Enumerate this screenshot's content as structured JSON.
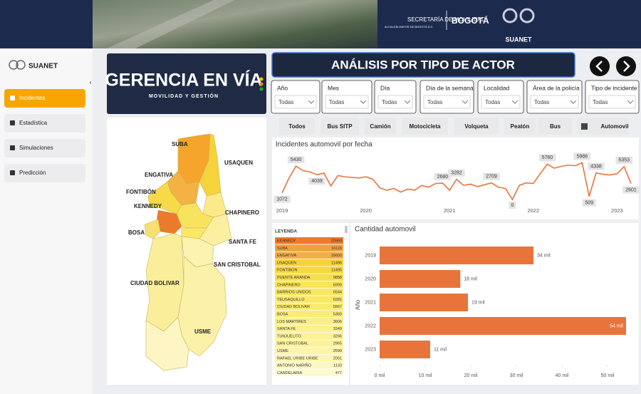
{
  "header": {
    "mayor": "ALCALDÍA MAYOR DE BOGOTÁ D.C.",
    "agency": "SECRETARÍA DE MOVILIDAD",
    "city": "BOGOTÁ",
    "brand": "SUANET"
  },
  "sidebar": {
    "brand": "SUANET",
    "items": [
      {
        "label": "Incidentes",
        "active": true
      },
      {
        "label": "Estadística",
        "active": false
      },
      {
        "label": "Simulaciones",
        "active": false
      },
      {
        "label": "Predicción",
        "active": false
      }
    ]
  },
  "logo": {
    "title": "GERENCIA EN VÍA",
    "subtitle": "MOVILIDAD Y GESTIÓN"
  },
  "page_title": "ANÁLISIS POR TIPO DE ACTOR",
  "filters": [
    {
      "label": "Año",
      "value": "Todas"
    },
    {
      "label": "Mes",
      "value": "Todas"
    },
    {
      "label": "Día",
      "value": "Todas"
    },
    {
      "label": "Día de la semana",
      "value": "Todas"
    },
    {
      "label": "Localidad",
      "value": "Todas"
    },
    {
      "label": "Área de la policía",
      "value": "Todas"
    },
    {
      "label": "Tipo de incidente",
      "value": "Todas"
    }
  ],
  "actors": [
    {
      "label": "Todos",
      "selected": false
    },
    {
      "label": "Bus SITP",
      "selected": false
    },
    {
      "label": "Camión",
      "selected": false
    },
    {
      "label": "Motocicleta",
      "selected": false
    },
    {
      "label": "Volqueta",
      "selected": false
    },
    {
      "label": "Peatón",
      "selected": false
    },
    {
      "label": "Bus",
      "selected": false
    },
    {
      "label": "Automovil",
      "selected": true
    }
  ],
  "map_labels": [
    "SUBA",
    "USAQUEN",
    "ENGATIVA",
    "FONTIBÓN",
    "KENNEDY",
    "CHAPINERO",
    "BOSA",
    "SANTA FE",
    "SAN CRISTOBAL",
    "CIUDAD BOLIVAR",
    "USME"
  ],
  "legend": {
    "title": "LEYENDA",
    "rows": [
      {
        "name": "KENNEDY",
        "value": "20999",
        "color": "#ec7a30"
      },
      {
        "name": "SUBA",
        "value": "16116",
        "color": "#f2a03c"
      },
      {
        "name": "ENGATIVA",
        "value": "15600",
        "color": "#f4ad45"
      },
      {
        "name": "USAQUEN",
        "value": "11496",
        "color": "#f7d23a"
      },
      {
        "name": "FONTIBON",
        "value": "11495",
        "color": "#f7d83e"
      },
      {
        "name": "PUENTE ARANDA",
        "value": "9858",
        "color": "#f8de4a"
      },
      {
        "name": "CHAPINERO",
        "value": "6999",
        "color": "#f9e45a"
      },
      {
        "name": "BARRIOS UNIDOS",
        "value": "6544",
        "color": "#f9e660"
      },
      {
        "name": "TEUSAQUILLO",
        "value": "6281",
        "color": "#fae866"
      },
      {
        "name": "CIUDAD BOLIVAR",
        "value": "5667",
        "color": "#faea70"
      },
      {
        "name": "BOSA",
        "value": "5360",
        "color": "#fbec78"
      },
      {
        "name": "LOS MARTIRES",
        "value": "3606",
        "color": "#fbee88"
      },
      {
        "name": "SANTA FE",
        "value": "3349",
        "color": "#fcf090"
      },
      {
        "name": "TUNJUELITO",
        "value": "3266",
        "color": "#fcf196"
      },
      {
        "name": "SAN CRISTOBAL",
        "value": "2965",
        "color": "#fcf29c"
      },
      {
        "name": "USME",
        "value": "2599",
        "color": "#fdf4a6"
      },
      {
        "name": "RAFAEL URIBE URIBE",
        "value": "2001",
        "color": "#fdf6b0"
      },
      {
        "name": "ANTONIO NARIÑO",
        "value": "1133",
        "color": "#fdf8c0"
      },
      {
        "name": "CANDELARIA",
        "value": "477",
        "color": "#fefad0"
      }
    ]
  },
  "line_chart": {
    "type": "line",
    "title": "Incidentes automovil por fecha",
    "categories": [
      "2019",
      null,
      null,
      null,
      null,
      null,
      null,
      null,
      null,
      null,
      null,
      null,
      "2020",
      null,
      null,
      null,
      null,
      null,
      null,
      null,
      null,
      null,
      null,
      null,
      "2021",
      null,
      null,
      null,
      null,
      null,
      null,
      null,
      null,
      null,
      null,
      null,
      "2022",
      null,
      null,
      null,
      null,
      null,
      null,
      null,
      null,
      null,
      null,
      null,
      "2023",
      null,
      null
    ],
    "values": [
      1072,
      3500,
      5430,
      4700,
      4500,
      4039,
      4300,
      2200,
      3900,
      3700,
      3600,
      3500,
      3700,
      3300,
      1900,
      1500,
      1800,
      1200,
      1700,
      1500,
      2300,
      2000,
      2600,
      2680,
      1500,
      3282,
      2300,
      2500,
      2100,
      2400,
      2709,
      2000,
      1800,
      0,
      2300,
      2700,
      2600,
      4200,
      5760,
      5100,
      5400,
      5600,
      5500,
      5986,
      509,
      4338,
      4100,
      4000,
      4200,
      5353,
      2601
    ],
    "value_labels": [
      "1072",
      null,
      "5430",
      null,
      null,
      "4039",
      null,
      null,
      null,
      null,
      null,
      null,
      null,
      null,
      null,
      null,
      null,
      null,
      null,
      null,
      null,
      null,
      null,
      "2680",
      null,
      "3282",
      null,
      null,
      null,
      null,
      "2709",
      null,
      null,
      "0",
      null,
      null,
      null,
      null,
      "5760",
      null,
      null,
      null,
      null,
      "5986",
      "509",
      "4338",
      null,
      null,
      null,
      "5353",
      "2601"
    ],
    "color": "#e8743b",
    "ylim": [
      0,
      6500
    ]
  },
  "bar_chart": {
    "type": "bar",
    "orientation": "horizontal",
    "title": "Cantidad automovil",
    "y_label": "Año",
    "categories": [
      "2019",
      "2020",
      "2021",
      "2022",
      "2023"
    ],
    "values": [
      33750,
      17700,
      19380,
      54060,
      11090
    ],
    "value_labels": [
      "34 mil",
      "18 mil",
      "19 mil",
      "54 mil",
      "11 mil"
    ],
    "color": "#e8743b",
    "xlim": [
      0,
      55000
    ],
    "xticks": [
      {
        "value": 0,
        "label": "0 mil"
      },
      {
        "value": 10000,
        "label": "10 mil"
      },
      {
        "value": 20000,
        "label": "20 mil"
      },
      {
        "value": 30000,
        "label": "30 mil"
      },
      {
        "value": 40000,
        "label": "40 mil"
      },
      {
        "value": 50000,
        "label": "50 mil"
      }
    ]
  }
}
